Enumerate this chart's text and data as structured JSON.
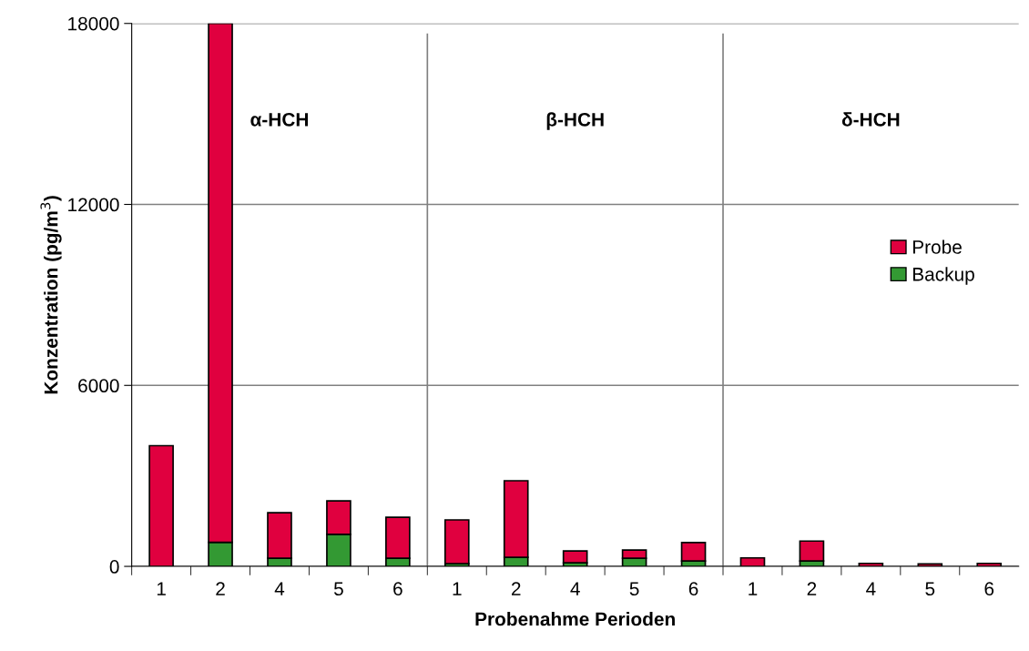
{
  "chart_data": {
    "type": "bar",
    "stacked": true,
    "xlabel": "Probenahme Perioden",
    "ylabel": "Konzentration (pg/m$^{3}$)",
    "categories": [
      "1",
      "2",
      "4",
      "5",
      "6",
      "1",
      "2",
      "4",
      "5",
      "6",
      "1",
      "2",
      "4",
      "5",
      "6"
    ],
    "series": [
      {
        "name": "Backup",
        "color": "#339933",
        "values": [
          0,
          800,
          270,
          1060,
          270,
          90,
          300,
          120,
          270,
          180,
          0,
          180,
          0,
          0,
          0
        ]
      },
      {
        "name": "Probe",
        "color": "#e0003f",
        "values": [
          4000,
          17200,
          1510,
          1110,
          1360,
          1450,
          2540,
          390,
          270,
          610,
          280,
          660,
          100,
          80,
          100
        ]
      }
    ],
    "ylim": [
      0,
      18000
    ],
    "yticks": [
      0,
      6000,
      12000,
      18000
    ],
    "grid": "y",
    "legend": "right",
    "annotations": [
      "α-HCH",
      "β-HCH",
      "δ-HCH"
    ]
  }
}
